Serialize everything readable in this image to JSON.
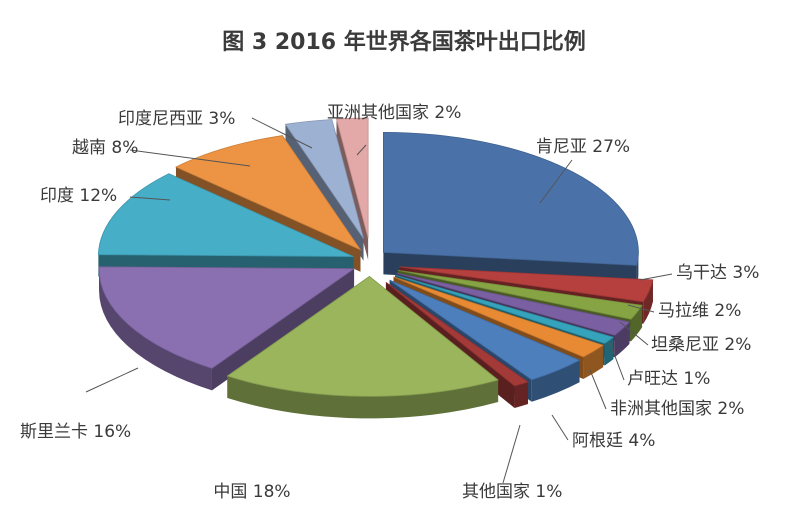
{
  "chart_data": {
    "type": "pie",
    "title": "图 3  2016 年世界各国茶叶出口比例",
    "slices": [
      {
        "name": "肯尼亚",
        "value": 27,
        "label": "肯尼亚 27%",
        "color": "#4a72a8"
      },
      {
        "name": "乌干达",
        "value": 3,
        "label": "乌干达 3%",
        "color": "#b5403e"
      },
      {
        "name": "马拉维",
        "value": 2,
        "label": "马拉维 2%",
        "color": "#86a444"
      },
      {
        "name": "坦桑尼亚",
        "value": 2,
        "label": "坦桑尼亚 2%",
        "color": "#7a60a2"
      },
      {
        "name": "卢旺达",
        "value": 1,
        "label": "卢旺达 1%",
        "color": "#36a3bc"
      },
      {
        "name": "非洲其他国家",
        "value": 2,
        "label": "非洲其他国家 2%",
        "color": "#e88a33"
      },
      {
        "name": "阿根廷",
        "value": 4,
        "label": "阿根廷 4%",
        "color": "#4d7fbd"
      },
      {
        "name": "其他国家",
        "value": 1,
        "label": "其他国家 1%",
        "color": "#a33a38"
      },
      {
        "name": "中国",
        "value": 18,
        "label": "中国 18%",
        "color": "#9ab55c"
      },
      {
        "name": "斯里兰卡",
        "value": 16,
        "label": "斯里兰卡 16%",
        "color": "#8a70b0"
      },
      {
        "name": "印度",
        "value": 12,
        "label": "印度 12%",
        "color": "#47aec8"
      },
      {
        "name": "越南",
        "value": 8,
        "label": "越南 8%",
        "color": "#ed9444"
      },
      {
        "name": "印度尼西亚",
        "value": 3,
        "label": "印度尼西亚 3%",
        "color": "#9db1d2"
      },
      {
        "name": "亚洲其他国家",
        "value": 2,
        "label": "亚洲其他国家 2%",
        "color": "#e3a8a8"
      }
    ]
  }
}
